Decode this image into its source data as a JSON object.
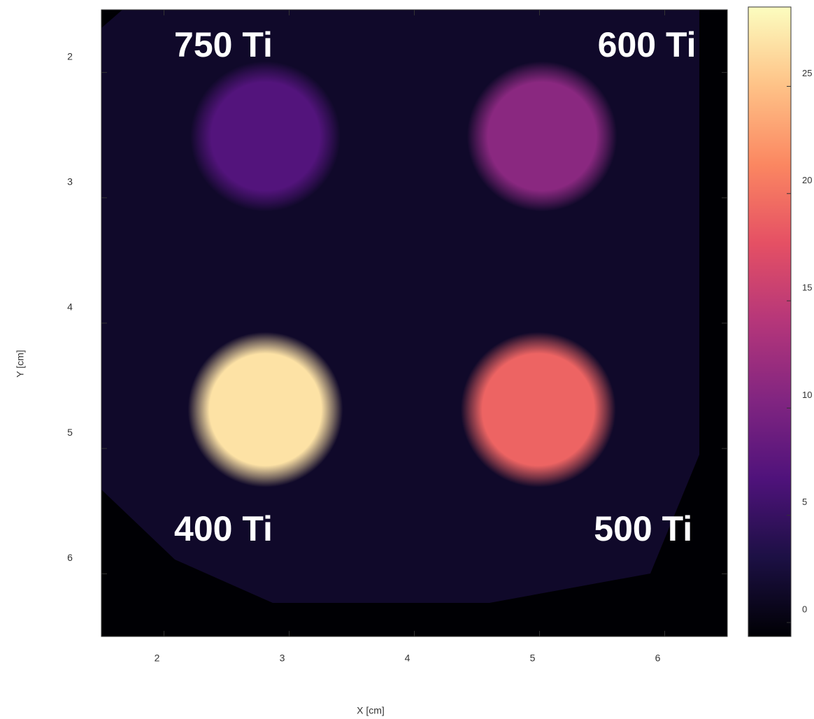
{
  "chart_data": {
    "type": "heatmap",
    "xlabel": "X [cm]",
    "ylabel": "Y [cm]",
    "xlim": [
      1.5,
      6.5
    ],
    "xticks": [
      2,
      3,
      4,
      5,
      6
    ],
    "ylim": [
      1.5,
      6.5
    ],
    "yticks": [
      2,
      3,
      4,
      5,
      6
    ],
    "y_inverted": true,
    "clim": [
      -0.65,
      28.7
    ],
    "cticks": [
      0,
      5,
      10,
      15,
      20,
      25
    ],
    "colormap": "magma",
    "background_value": 1.5,
    "spots": [
      {
        "label": "750 Ti",
        "x": 2.81,
        "y": 2.51,
        "radius": 0.6,
        "value": 7
      },
      {
        "label": "600 Ti",
        "x": 5.02,
        "y": 2.51,
        "radius": 0.6,
        "value": 11
      },
      {
        "label": "400 Ti",
        "x": 2.81,
        "y": 4.69,
        "radius": 0.62,
        "value": 27
      },
      {
        "label": "500 Ti",
        "x": 4.99,
        "y": 4.69,
        "radius": 0.62,
        "value": 19
      }
    ]
  }
}
